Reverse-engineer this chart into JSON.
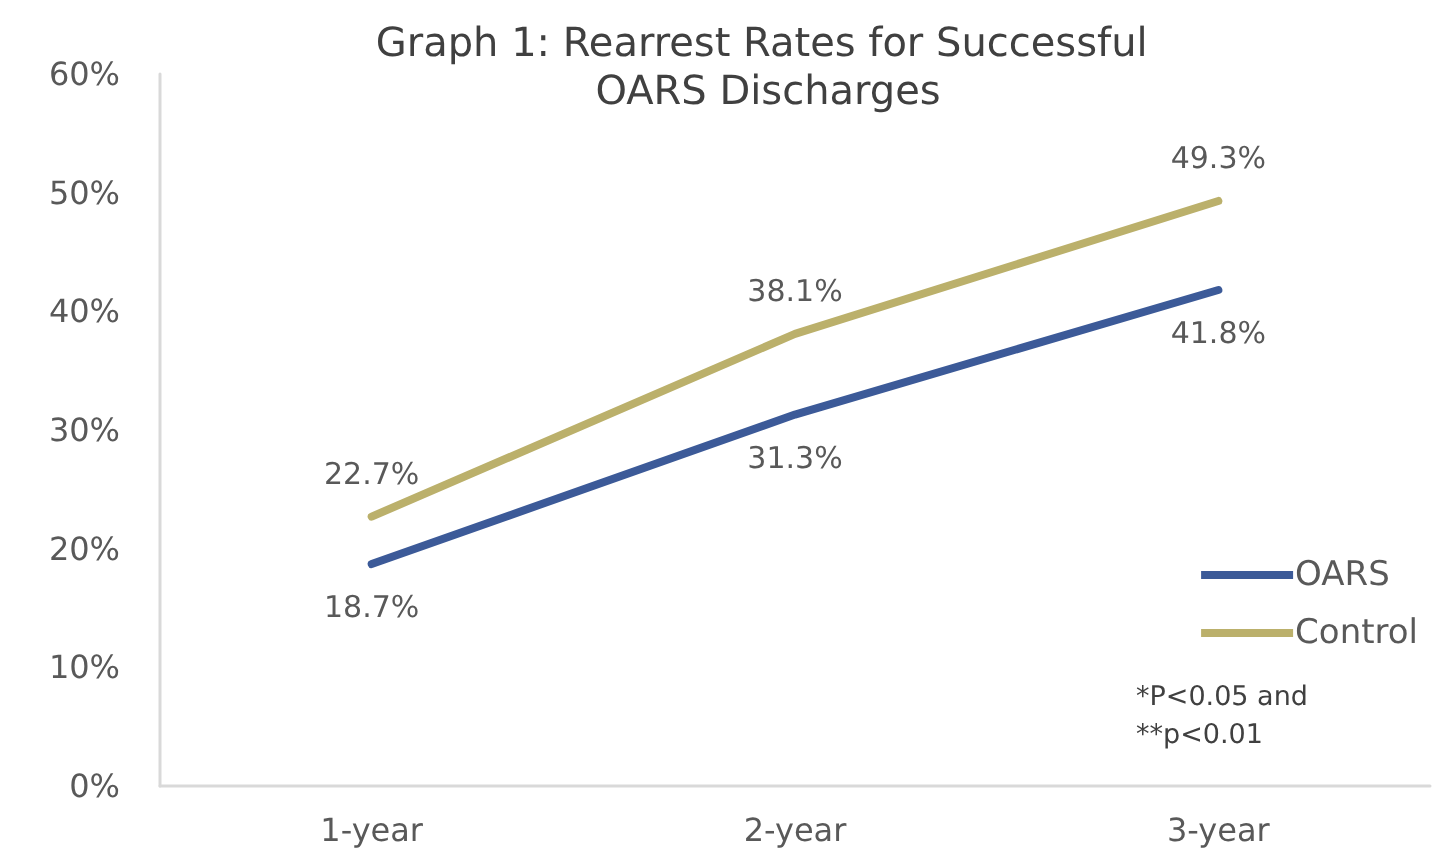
{
  "chart_data": {
    "type": "line",
    "title": "Graph 1: Rearrest Rates for Successful OARS Discharges",
    "categories": [
      "1-year",
      "2-year",
      "3-year"
    ],
    "series": [
      {
        "name": "OARS",
        "color": "#3c5a98",
        "values": [
          18.7,
          31.3,
          41.8
        ],
        "value_labels": [
          "18.7%",
          "31.3%",
          "41.8%"
        ]
      },
      {
        "name": "Control",
        "color": "#bbb06b",
        "values": [
          22.7,
          38.1,
          49.3
        ],
        "value_labels": [
          "22.7%",
          "38.1%",
          "49.3%"
        ]
      }
    ],
    "ylim": [
      0,
      60
    ],
    "yticks": [
      {
        "value": 0,
        "label": "0%"
      },
      {
        "value": 10,
        "label": "10%"
      },
      {
        "value": 20,
        "label": "20%"
      },
      {
        "value": 30,
        "label": "30%"
      },
      {
        "value": 40,
        "label": "40%"
      },
      {
        "value": 50,
        "label": "50%"
      },
      {
        "value": 60,
        "label": "60%"
      }
    ],
    "grid": false,
    "legend": "bottom right",
    "marker": "none",
    "line_style": "solid",
    "annotations": [
      "*P<0.05 and\n**p<0.01"
    ]
  }
}
